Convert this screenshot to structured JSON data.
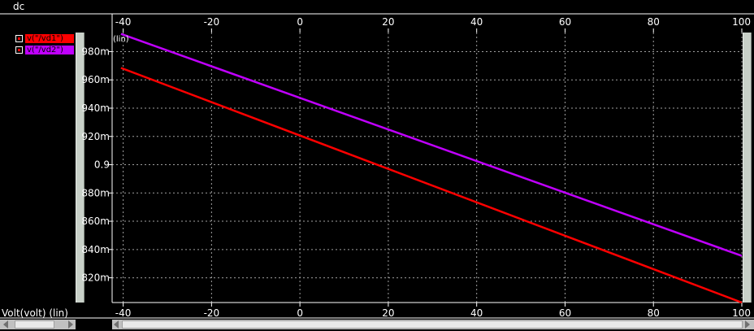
{
  "window": {
    "title": "dc"
  },
  "legend": {
    "items": [
      {
        "label": "v(\"/vd1\")",
        "color": "#ff0000"
      },
      {
        "label": "v(\"/vd2\")",
        "color": "#c000ff"
      }
    ]
  },
  "axis_footer": {
    "xlabel": "Volt(volt) (lin)"
  },
  "y_scale_tag": "(lin)",
  "chart_data": {
    "type": "line",
    "x": [
      -42.5,
      100
    ],
    "xticks": [
      -40,
      -20,
      0,
      20,
      40,
      60,
      80,
      100
    ],
    "xtick_labels": [
      "-40",
      "-20",
      "0",
      "20",
      "40",
      "60",
      "80",
      "100"
    ],
    "yticks": [
      0.82,
      0.84,
      0.86,
      0.88,
      0.9,
      0.92,
      0.94,
      0.96,
      0.98
    ],
    "ytick_labels": [
      "820m",
      "840m",
      "860m",
      "880m",
      "0.9",
      "920m",
      "940m",
      "960m",
      "980m"
    ],
    "xlim": [
      -42.5,
      100
    ],
    "ylim": [
      0.8025,
      0.9935
    ],
    "grid": true,
    "series": [
      {
        "name": "v(\"/vd1\")",
        "color": "#ff0000",
        "points": [
          [
            -40.5,
            0.9685
          ],
          [
            100,
            0.8025
          ]
        ]
      },
      {
        "name": "v(\"/vd2\")",
        "color": "#c000ff",
        "points": [
          [
            -40.5,
            0.9925
          ],
          [
            100,
            0.8355
          ]
        ]
      }
    ]
  }
}
